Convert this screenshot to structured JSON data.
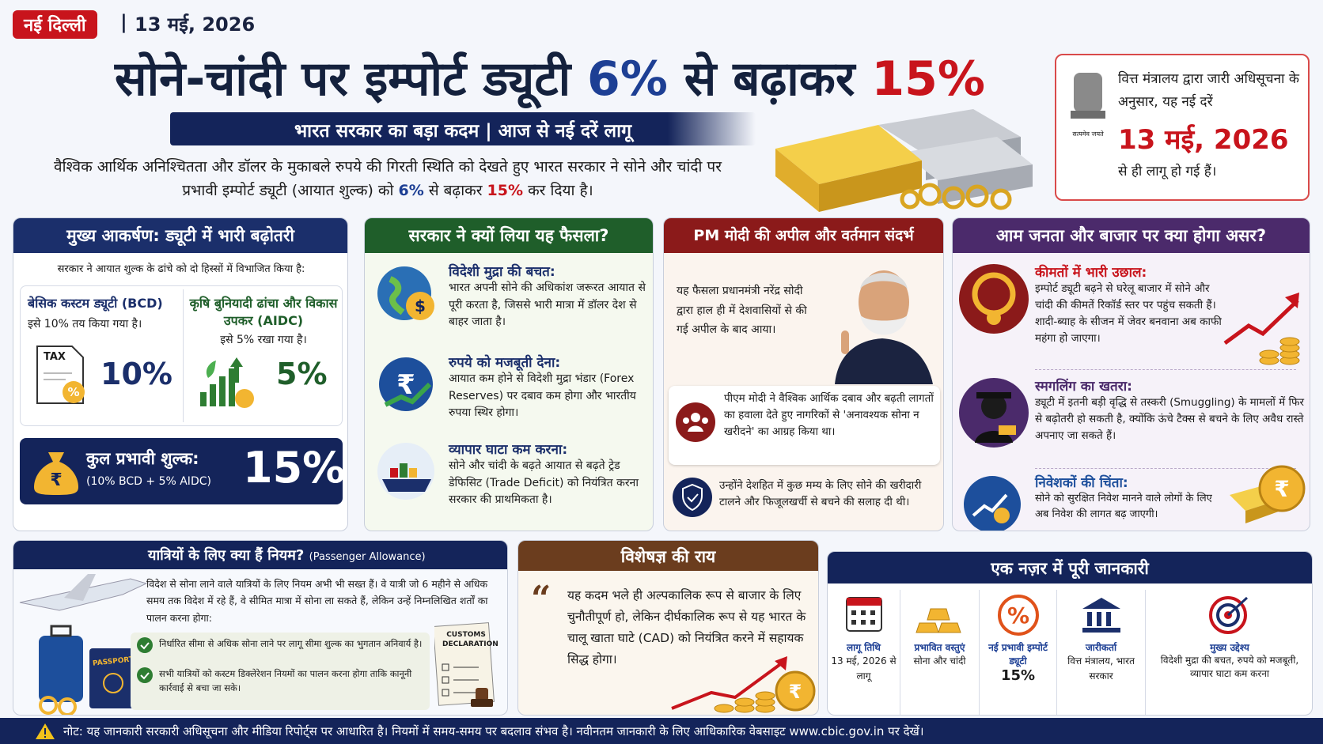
{
  "header": {
    "location": "नई दिल्ली",
    "date": "13 मई, 2026"
  },
  "title": {
    "parts": [
      "सोने-चांदी पर इम्पोर्ट ड्यूटी ",
      "6%",
      " से बढ़ाकर ",
      "15%"
    ]
  },
  "subtitle": "भारत सरकार का बड़ा कदम | आज से नई दरें लागू",
  "intro": {
    "parts": [
      "वैश्विक आर्थिक अनिश्चितता और डॉलर के मुकाबले रुपये की गिरती स्थिति को देखते हुए भारत सरकार ने सोने और चांदी पर प्रभावी इम्पोर्ट ड्यूटी (आयात शुल्क) को ",
      "6%",
      " से बढ़ाकर ",
      "15%",
      " कर दिया है।"
    ]
  },
  "notice": {
    "emblem_caption": "सत्यमेव जयते",
    "line1": "वित्त मंत्रालय द्वारा जारी अधिसूचना के अनुसार, यह नई दरें",
    "date": "13 मई, 2026",
    "line2": "से ही लागू हो गई हैं।"
  },
  "highlights": {
    "title": "मुख्य आकर्षण: ड्यूटी में भारी बढ़ोतरी",
    "lead": "सरकार ने आयात शुल्क के ढांचे को दो हिस्सों में विभाजित किया है:",
    "bcd": {
      "heading": "बेसिक कस्टम ड्यूटी (BCD)",
      "text": "इसे 10% तय किया गया है।",
      "icon_label": "TAX",
      "value": "10%"
    },
    "aidc": {
      "heading": "कृषि बुनियादी ढांचा और विकास उपकर (AIDC)",
      "text": "इसे 5% रखा गया है।",
      "value": "5%"
    },
    "total": {
      "label": "कुल प्रभावी शुल्क:",
      "breakdown": "(10% BCD + 5% AIDC)",
      "value": "15%"
    }
  },
  "reasons": {
    "title": "सरकार ने क्यों लिया यह फैसला?",
    "items": [
      {
        "heading": "विदेशी मुद्रा की बचत:",
        "text": "भारत अपनी सोने की अधिकांश जरूरत आयात से पूरी करता है, जिससे भारी मात्रा में डॉलर देश से बाहर जाता है।"
      },
      {
        "heading": "रुपये को मजबूती देना:",
        "text": "आयात कम होने से विदेशी मुद्रा भंडार (Forex Reserves) पर दबाव कम होगा और भारतीय रुपया स्थिर होगा।"
      },
      {
        "heading": "व्यापार घाटा कम करना:",
        "text": "सोने और चांदी के बढ़ते आयात से बढ़ते ट्रेड डेफिसिट (Trade Deficit) को नियंत्रित करना सरकार की प्राथमिकता है।"
      }
    ]
  },
  "appeal": {
    "title": "PM मोदी की अपील और वर्तमान संदर्भ",
    "p1": "यह फैसला प्रधानमंत्री नरेंद्र सोदी द्वारा हाल ही में देशवासियों से की गई अपील के बाद आया।",
    "p2": "पीएम मोदी ने वैश्विक आर्थिक दबाव और बढ़ती लागतों का हवाला देते हुए नागरिकों से 'अनावश्यक सोना न खरीदने' का आग्रह किया था।",
    "p3": "उन्होंने देशहित में कुछ मम्य के लिए सोने की खरीदारी टालने और फिजूलखर्ची से बचने की सलाह दी थी।"
  },
  "impact": {
    "title": "आम जनता और बाजार पर क्या होगा असर?",
    "items": [
      {
        "heading": "कीमतों में भारी उछाल:",
        "text": "इम्पोर्ट ड्यूटी बढ़ने से घरेलू बाजार में सोने और चांदी की कीमतें रिकॉर्ड स्तर पर पहुंच सकती हैं। शादी-ब्याह के सीजन में जेवर बनवाना अब काफी महंगा हो जाएगा।"
      },
      {
        "heading": "स्मगलिंग का खतरा:",
        "text": "ड्यूटी में इतनी बड़ी वृद्धि से तस्करी (Smuggling) के मामलों में फिर से बढ़ोतरी हो सकती है, क्योंकि ऊंचे टैक्स से बचने के लिए अवैध रास्ते अपनाए जा सकते हैं।"
      },
      {
        "heading": "निवेशकों की चिंता:",
        "text": "सोने को सुरक्षित निवेश मानने वाले लोगों के लिए अब निवेश की लागत बढ़ जाएगी।"
      }
    ]
  },
  "passengers": {
    "title": "यात्रियों के लिए क्या हैं नियम?",
    "title_en": "(Passenger Allowance)",
    "text": "विदेश से सोना लाने वाले यात्रियों के लिए नियम अभी भी सख्त हैं। वे यात्री जो 6 महीने से अधिक समय तक विदेश में रहे हैं, वे सीमित मात्रा में सोना ला सकते हैं, लेकिन उन्हें निम्नलिखित शर्तों का पालन करना होगा:",
    "rules": [
      "निर्धारित सीमा से अधिक सोना लाने पर लागू सीमा शुल्क का भुगतान अनिवार्य है।",
      "सभी यात्रियों को कस्टम डिक्लेरेशन नियमों का पालन करना होगा ताकि कानूनी कार्रवाई से बचा जा सके।"
    ],
    "passport_label": "PASSPORT",
    "customs_label": "CUSTOMS DECLARATION"
  },
  "expert": {
    "title": "विशेषज्ञ की राय",
    "quote": "यह कदम भले ही अल्पकालिक रूप से बाजार के लिए चुनौतीपूर्ण हो, लेकिन दीर्घकालिक रूप से यह भारत के चालू खाता घाटे (CAD) को नियंत्रित करने में सहायक सिद्ध होगा।"
  },
  "summary": {
    "title": "एक नज़र में पूरी जानकारी",
    "items": [
      {
        "label": "लागू तिथि",
        "value": "13 मई, 2026 से लागू"
      },
      {
        "label": "प्रभावित वस्तुएं",
        "value": "सोना और चांदी"
      },
      {
        "label": "नई प्रभावी इम्पोर्ट ड्यूटी",
        "value": "15%"
      },
      {
        "label": "जारीकर्ता",
        "value": "वित्त मंत्रालय, भारत सरकार"
      },
      {
        "label": "मुख्य उद्देश्य",
        "value": "विदेशी मुद्रा की बचत, रुपये को मजबूती, व्यापार घाटा कम करना"
      }
    ]
  },
  "footer": "नोट: यह जानकारी सरकारी अधिसूचना और मीडिया रिपोर्ट्स पर आधारित है। नियमों में समय-समय पर बदलाव संभव है। नवीनतम जानकारी के लिए आधिकारिक वेबसाइट www.cbic.gov.in पर देखें।"
}
